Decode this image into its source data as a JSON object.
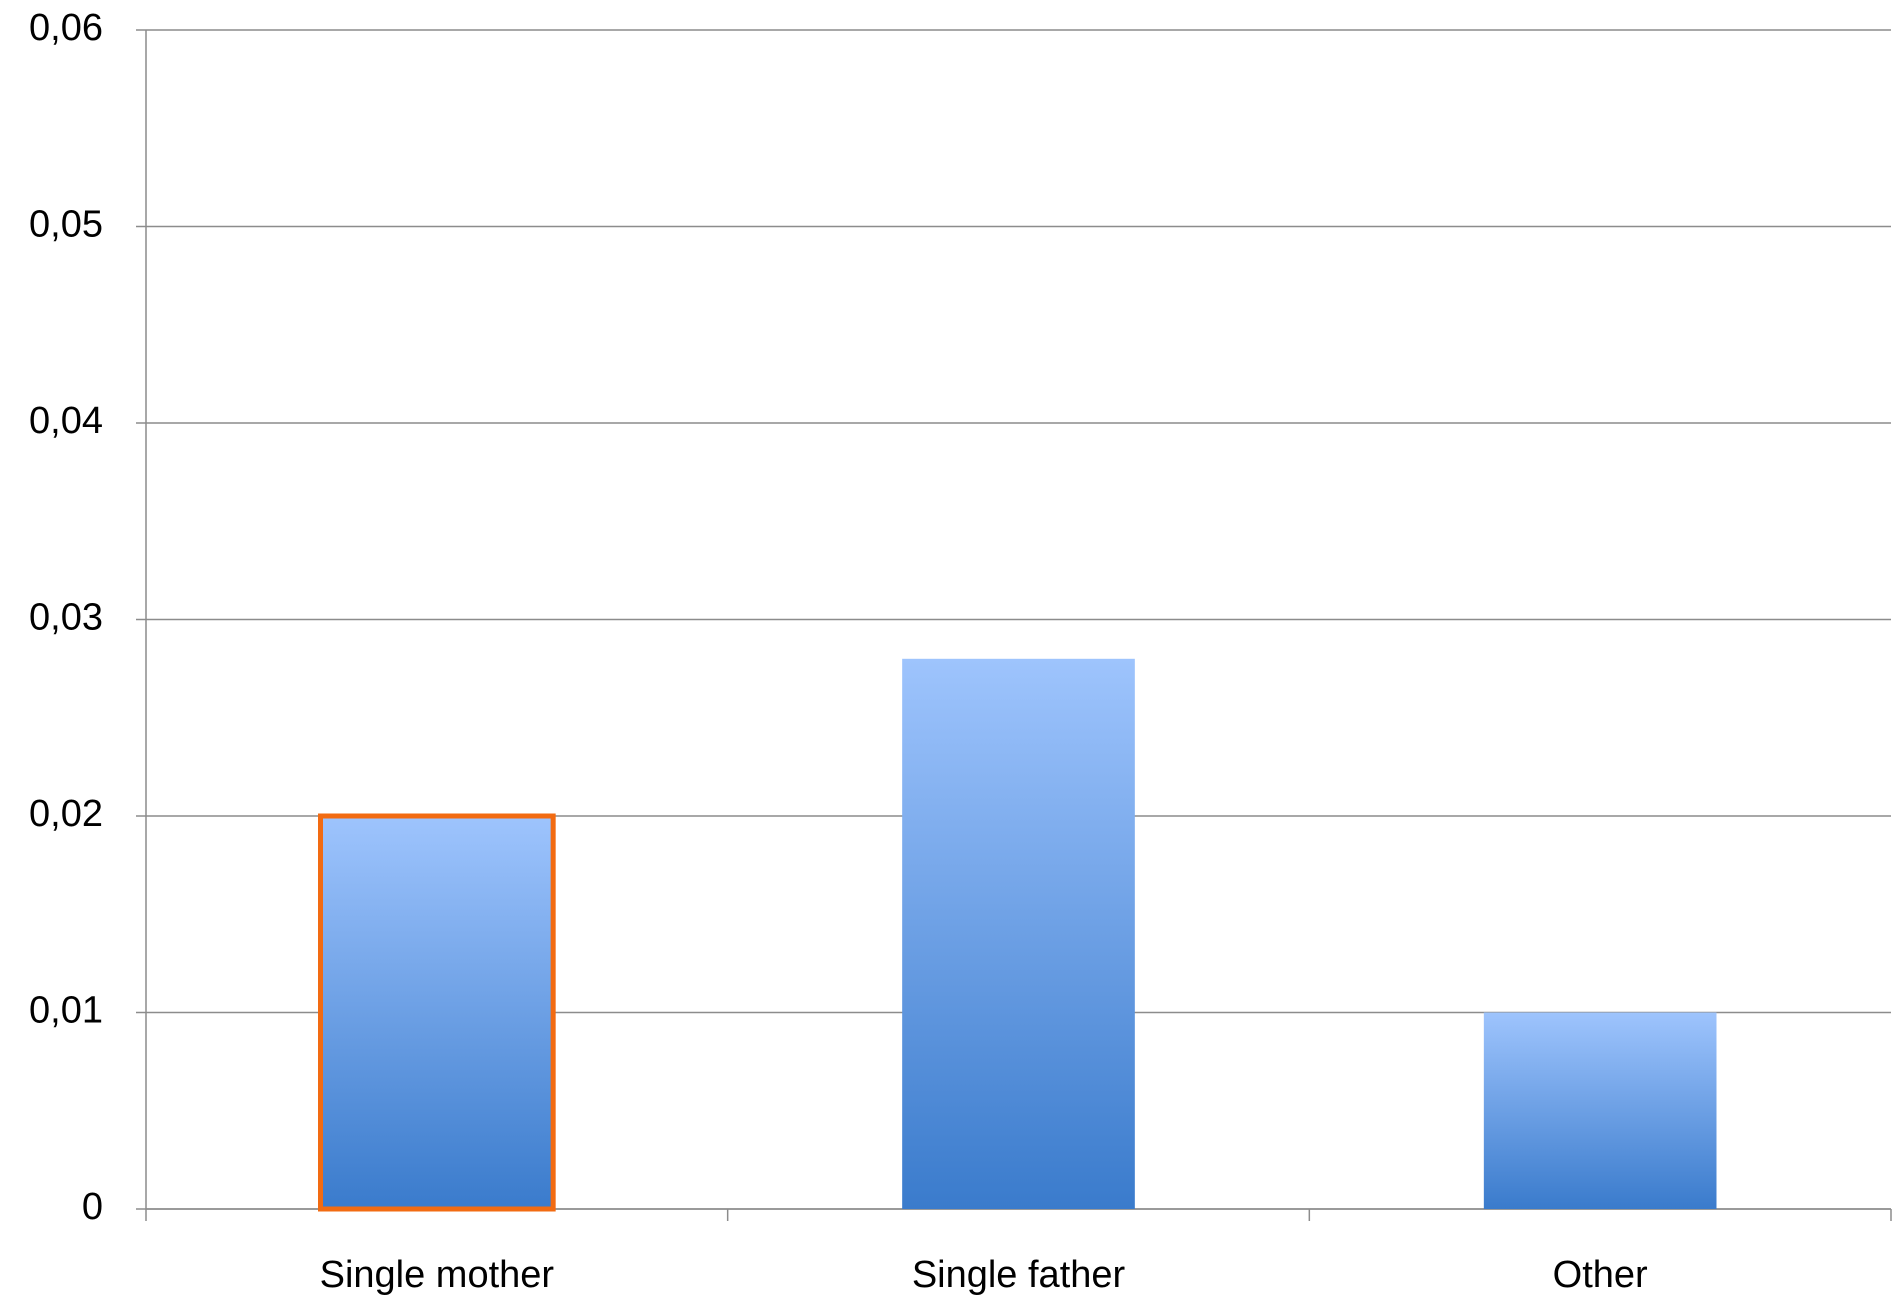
{
  "chart_data": {
    "type": "bar",
    "categories": [
      "Single mother",
      "Single father",
      "Other"
    ],
    "values": [
      0.02,
      0.028,
      0.01
    ],
    "color": {
      "top": "#9ec4fd",
      "bottom": "#3a7bcc"
    },
    "highlight": {
      "index": 0,
      "color": "#f26b12"
    },
    "ylim": [
      0,
      0.06
    ],
    "yticks": [
      {
        "value": 0,
        "label": "0"
      },
      {
        "value": 0.01,
        "label": "0,01"
      },
      {
        "value": 0.02,
        "label": "0,02"
      },
      {
        "value": 0.03,
        "label": "0,03"
      },
      {
        "value": 0.04,
        "label": "0,04"
      },
      {
        "value": 0.05,
        "label": "0,05"
      },
      {
        "value": 0.06,
        "label": "0,06"
      }
    ],
    "grid": true
  }
}
